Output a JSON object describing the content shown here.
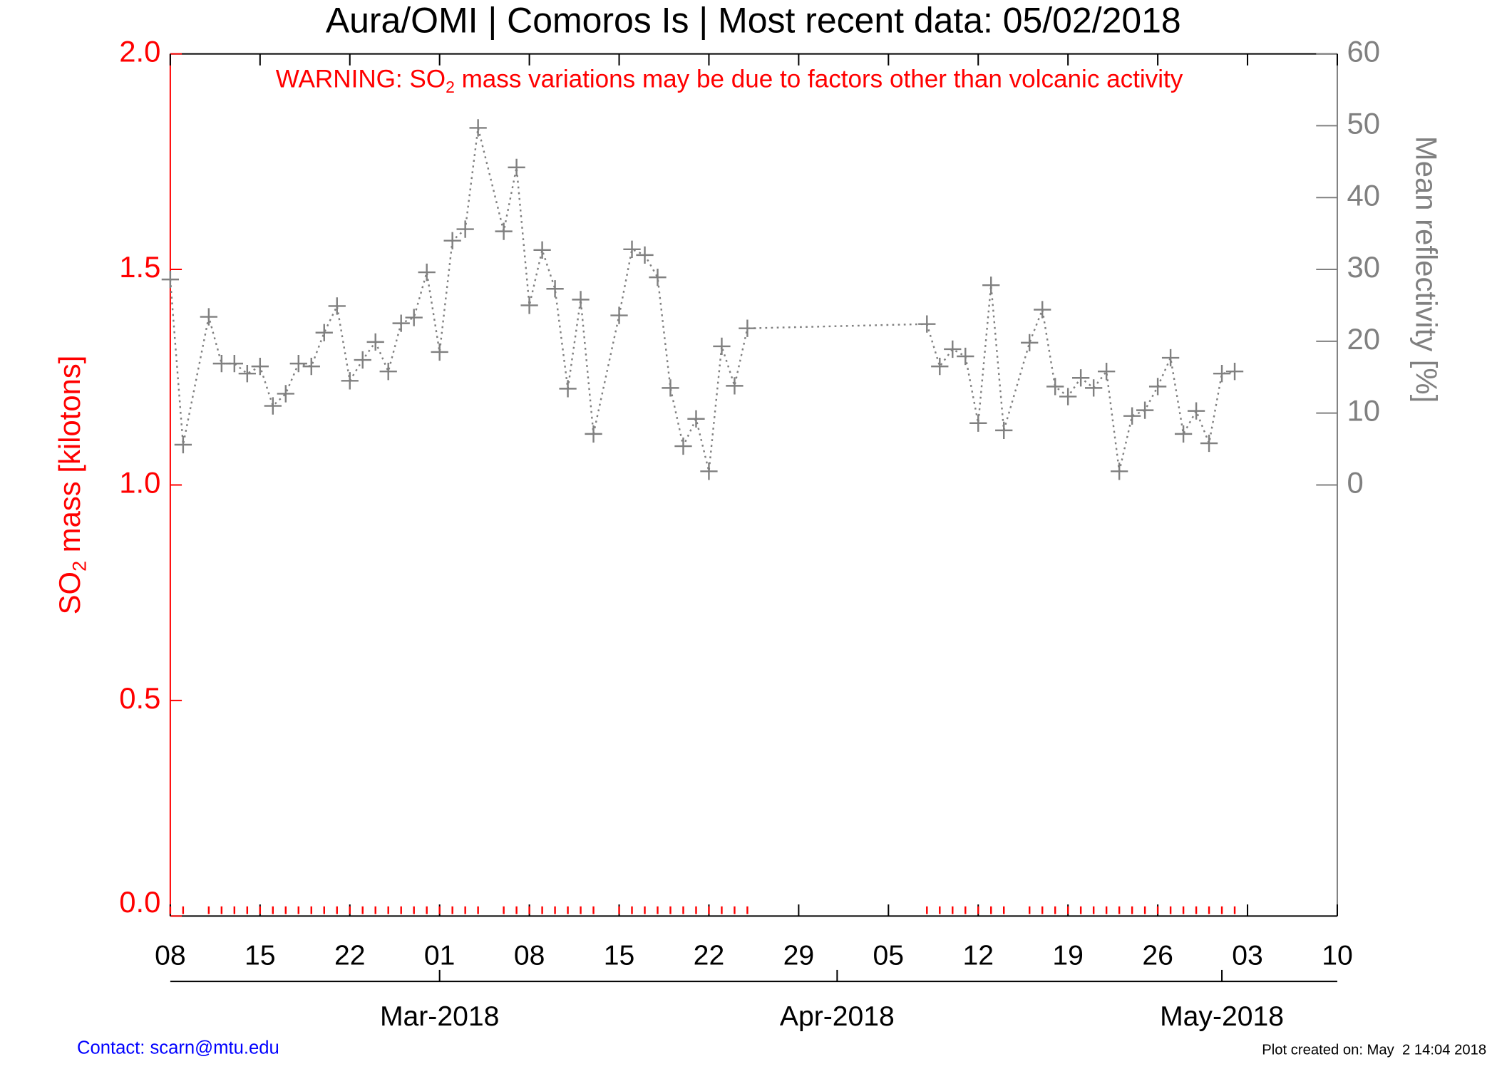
{
  "chart_data": {
    "type": "line",
    "title": "Aura/OMI | Comoros Is | Most recent data: 05/02/2018",
    "warning": [
      "WARNING: SO",
      "2",
      " mass variations may be due to factors other than volcanic activity"
    ],
    "y_label": [
      "SO",
      "2",
      " mass [kilotons]"
    ],
    "y2_label": "Mean reflectivity [%]",
    "contact": "Contact: scarn@mtu.edu",
    "created": "Plot created on: May  2 14:04 2018",
    "xlim": [
      "2018-02-08",
      "2018-05-10"
    ],
    "xticks": [
      {
        "value": "2018-02-08",
        "label": "08"
      },
      {
        "value": "2018-02-15",
        "label": "15"
      },
      {
        "value": "2018-02-22",
        "label": "22"
      },
      {
        "value": "2018-03-01",
        "label": "01"
      },
      {
        "value": "2018-03-08",
        "label": "08"
      },
      {
        "value": "2018-03-15",
        "label": "15"
      },
      {
        "value": "2018-03-22",
        "label": "22"
      },
      {
        "value": "2018-03-29",
        "label": "29"
      },
      {
        "value": "2018-04-05",
        "label": "05"
      },
      {
        "value": "2018-04-12",
        "label": "12"
      },
      {
        "value": "2018-04-19",
        "label": "19"
      },
      {
        "value": "2018-04-26",
        "label": "26"
      },
      {
        "value": "2018-05-03",
        "label": "03"
      },
      {
        "value": "2018-05-10",
        "label": "10"
      }
    ],
    "month_ticks": [
      {
        "value": "2018-03-01",
        "label": "Mar-2018"
      },
      {
        "value": "2018-04-01",
        "label": "Apr-2018"
      },
      {
        "value": "2018-05-01",
        "label": "May-2018"
      }
    ],
    "ylim": [
      0,
      2
    ],
    "yticks": [
      {
        "value": 0,
        "label": "0.0"
      },
      0.5,
      {
        "value": 1,
        "label": "1.0"
      },
      1.5,
      {
        "value": 2,
        "label": "2.0"
      }
    ],
    "y2lim": [
      -60,
      60
    ],
    "y2ticks": [
      0,
      10,
      20,
      30,
      40,
      50,
      60
    ],
    "x": [
      "2018-02-08",
      "2018-02-09",
      "2018-02-11",
      "2018-02-12",
      "2018-02-13",
      "2018-02-14",
      "2018-02-15",
      "2018-02-16",
      "2018-02-17",
      "2018-02-18",
      "2018-02-19",
      "2018-02-20",
      "2018-02-21",
      "2018-02-22",
      "2018-02-23",
      "2018-02-24",
      "2018-02-25",
      "2018-02-26",
      "2018-02-27",
      "2018-02-28",
      "2018-03-01",
      "2018-03-02",
      "2018-03-03",
      "2018-03-04",
      "2018-03-06",
      "2018-03-07",
      "2018-03-08",
      "2018-03-09",
      "2018-03-10",
      "2018-03-11",
      "2018-03-12",
      "2018-03-13",
      "2018-03-15",
      "2018-03-16",
      "2018-03-17",
      "2018-03-18",
      "2018-03-19",
      "2018-03-20",
      "2018-03-21",
      "2018-03-22",
      "2018-03-23",
      "2018-03-24",
      "2018-03-25",
      "2018-04-08",
      "2018-04-09",
      "2018-04-10",
      "2018-04-11",
      "2018-04-12",
      "2018-04-13",
      "2018-04-14",
      "2018-04-16",
      "2018-04-17",
      "2018-04-18",
      "2018-04-19",
      "2018-04-20",
      "2018-04-21",
      "2018-04-22",
      "2018-04-23",
      "2018-04-24",
      "2018-04-25",
      "2018-04-26",
      "2018-04-27",
      "2018-04-28",
      "2018-04-29",
      "2018-04-30",
      "2018-05-01",
      "2018-05-02"
    ],
    "series": [
      {
        "color": "#ff0000",
        "values": [
          0,
          0,
          0,
          0,
          0,
          0,
          0,
          0,
          0,
          0,
          0,
          0,
          0,
          0,
          0,
          0,
          0,
          0,
          0,
          0,
          0,
          0,
          0,
          0,
          0,
          0,
          0,
          0,
          0,
          0,
          0,
          0,
          0,
          0,
          0,
          0,
          0,
          0,
          0,
          0,
          0,
          0,
          0,
          0,
          0,
          0,
          0,
          0,
          0,
          0,
          0,
          0,
          0,
          0,
          0,
          0,
          0,
          0,
          0,
          0,
          0,
          0,
          0,
          0,
          0,
          0,
          0
        ]
      },
      {
        "color": "#808080",
        "axis": "y2",
        "values": [
          28.6,
          5.6,
          23.4,
          16.9,
          16.9,
          15.5,
          16.5,
          11.0,
          12.7,
          16.9,
          16.5,
          21.2,
          24.9,
          14.5,
          17.4,
          19.9,
          15.8,
          22.5,
          23.3,
          29.6,
          18.5,
          34.0,
          35.6,
          49.7,
          35.3,
          44.2,
          25.0,
          32.7,
          27.3,
          13.4,
          25.8,
          7.1,
          23.6,
          32.8,
          32.0,
          28.9,
          13.5,
          5.4,
          9.2,
          1.9,
          19.3,
          13.8,
          21.8,
          22.4,
          16.5,
          18.9,
          17.9,
          8.6,
          27.8,
          7.6,
          19.8,
          24.4,
          13.7,
          12.3,
          14.9,
          13.5,
          15.8,
          1.9,
          9.6,
          10.4,
          13.7,
          17.7,
          7.1,
          10.3,
          5.8,
          15.5,
          15.8
        ]
      }
    ]
  }
}
